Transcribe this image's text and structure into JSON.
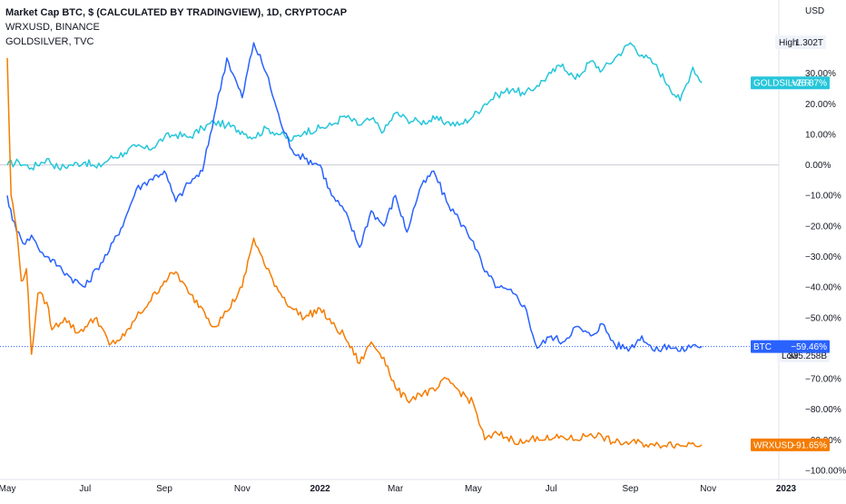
{
  "header": {
    "line1": "Market Cap BTC, $ (CALCULATED BY TRADINGVIEW), 1D, CRYPTOCAP",
    "line2": "WRXUSD, BINANCE",
    "line3": "GOLDSILVER, TVC"
  },
  "axis": {
    "currency": "USD",
    "high_label": "High",
    "high_value": "1.302T",
    "low_label": "Low",
    "low_value": "335.258B"
  },
  "chart_data": {
    "type": "line",
    "y_unit": "% change",
    "ylim": [
      -103,
      54
    ],
    "y_ticks": [
      {
        "value": 30,
        "label": "30.00%"
      },
      {
        "value": 20,
        "label": "20.00%"
      },
      {
        "value": 10,
        "label": "10.00%"
      },
      {
        "value": 0,
        "label": "0.00%"
      },
      {
        "value": -10,
        "label": "−10.00%"
      },
      {
        "value": -20,
        "label": "−20.00%"
      },
      {
        "value": -30,
        "label": "−30.00%"
      },
      {
        "value": -40,
        "label": "−40.00%"
      },
      {
        "value": -50,
        "label": "−50.00%"
      },
      {
        "value": -70,
        "label": "−70.00%"
      },
      {
        "value": -80,
        "label": "−80.00%"
      },
      {
        "value": -90,
        "label": "−90.00%"
      },
      {
        "value": -100,
        "label": "−100.00%"
      }
    ],
    "x_ticks": [
      {
        "label": "May",
        "bold": false
      },
      {
        "label": "Jul",
        "bold": false
      },
      {
        "label": "Sep",
        "bold": false
      },
      {
        "label": "Nov",
        "bold": false
      },
      {
        "label": "2022",
        "bold": true
      },
      {
        "label": "Mar",
        "bold": false
      },
      {
        "label": "May",
        "bold": false
      },
      {
        "label": "Jul",
        "bold": false
      },
      {
        "label": "Sep",
        "bold": false
      },
      {
        "label": "Nov",
        "bold": false
      },
      {
        "label": "2023",
        "bold": true
      }
    ],
    "x_tick_dates": [
      "2021-05-01",
      "2021-07-01",
      "2021-09-01",
      "2021-11-01",
      "2022-01-01",
      "2022-03-01",
      "2022-05-01",
      "2022-07-01",
      "2022-09-01",
      "2022-11-01",
      "2023-01-01"
    ],
    "baseline": 0,
    "series": [
      {
        "name": "GOLDSILVER",
        "color": "#26c6da",
        "last_value": 26.87,
        "last_label": "+26.87%",
        "points": [
          [
            "2021-05-01",
            0
          ],
          [
            "2021-05-10",
            1
          ],
          [
            "2021-05-20",
            -1
          ],
          [
            "2021-06-01",
            2
          ],
          [
            "2021-06-10",
            -1
          ],
          [
            "2021-06-20",
            0
          ],
          [
            "2021-07-01",
            1
          ],
          [
            "2021-07-10",
            -1
          ],
          [
            "2021-07-20",
            2
          ],
          [
            "2021-08-01",
            4
          ],
          [
            "2021-08-10",
            6
          ],
          [
            "2021-08-20",
            5
          ],
          [
            "2021-09-01",
            9
          ],
          [
            "2021-09-10",
            10
          ],
          [
            "2021-09-20",
            9
          ],
          [
            "2021-10-01",
            12
          ],
          [
            "2021-10-10",
            14
          ],
          [
            "2021-10-20",
            13
          ],
          [
            "2021-11-01",
            11
          ],
          [
            "2021-11-10",
            9
          ],
          [
            "2021-11-20",
            12
          ],
          [
            "2021-12-01",
            10
          ],
          [
            "2021-12-10",
            8
          ],
          [
            "2021-12-20",
            11
          ],
          [
            "2022-01-01",
            12
          ],
          [
            "2022-01-10",
            13
          ],
          [
            "2022-01-20",
            16
          ],
          [
            "2022-02-01",
            13
          ],
          [
            "2022-02-10",
            15
          ],
          [
            "2022-02-20",
            11
          ],
          [
            "2022-03-01",
            17
          ],
          [
            "2022-03-10",
            15
          ],
          [
            "2022-03-20",
            14
          ],
          [
            "2022-04-01",
            15
          ],
          [
            "2022-04-10",
            14
          ],
          [
            "2022-04-20",
            13
          ],
          [
            "2022-05-01",
            16
          ],
          [
            "2022-05-10",
            20
          ],
          [
            "2022-05-20",
            23
          ],
          [
            "2022-06-01",
            25
          ],
          [
            "2022-06-10",
            23
          ],
          [
            "2022-06-20",
            26
          ],
          [
            "2022-07-01",
            30
          ],
          [
            "2022-07-10",
            33
          ],
          [
            "2022-07-20",
            28
          ],
          [
            "2022-08-01",
            34
          ],
          [
            "2022-08-10",
            31
          ],
          [
            "2022-08-20",
            35
          ],
          [
            "2022-09-01",
            40
          ],
          [
            "2022-09-10",
            36
          ],
          [
            "2022-09-20",
            33
          ],
          [
            "2022-10-01",
            26
          ],
          [
            "2022-10-10",
            21
          ],
          [
            "2022-10-20",
            32
          ],
          [
            "2022-10-27",
            26.87
          ]
        ]
      },
      {
        "name": "BTC",
        "color": "#2962ff",
        "last_value": -59.46,
        "last_label": "−59.46%",
        "points": [
          [
            "2021-05-01",
            -10
          ],
          [
            "2021-05-05",
            -18
          ],
          [
            "2021-05-10",
            -22
          ],
          [
            "2021-05-15",
            -26
          ],
          [
            "2021-05-20",
            -23
          ],
          [
            "2021-05-25",
            -27
          ],
          [
            "2021-06-01",
            -30
          ],
          [
            "2021-06-10",
            -33
          ],
          [
            "2021-06-20",
            -37
          ],
          [
            "2021-07-01",
            -40
          ],
          [
            "2021-07-10",
            -34
          ],
          [
            "2021-07-20",
            -28
          ],
          [
            "2021-08-01",
            -18
          ],
          [
            "2021-08-10",
            -8
          ],
          [
            "2021-08-20",
            -5
          ],
          [
            "2021-09-01",
            -2
          ],
          [
            "2021-09-10",
            -12
          ],
          [
            "2021-09-20",
            -6
          ],
          [
            "2021-10-01",
            -2
          ],
          [
            "2021-10-10",
            16
          ],
          [
            "2021-10-20",
            35
          ],
          [
            "2021-11-01",
            22
          ],
          [
            "2021-11-10",
            40
          ],
          [
            "2021-11-20",
            30
          ],
          [
            "2021-12-01",
            14
          ],
          [
            "2021-12-10",
            5
          ],
          [
            "2021-12-20",
            2
          ],
          [
            "2022-01-01",
            0
          ],
          [
            "2022-01-10",
            -10
          ],
          [
            "2022-01-20",
            -15
          ],
          [
            "2022-02-01",
            -27
          ],
          [
            "2022-02-10",
            -15
          ],
          [
            "2022-02-20",
            -20
          ],
          [
            "2022-03-01",
            -10
          ],
          [
            "2022-03-10",
            -22
          ],
          [
            "2022-03-20",
            -8
          ],
          [
            "2022-03-31",
            -2
          ],
          [
            "2022-04-10",
            -12
          ],
          [
            "2022-04-20",
            -18
          ],
          [
            "2022-05-01",
            -25
          ],
          [
            "2022-05-10",
            -35
          ],
          [
            "2022-05-20",
            -40
          ],
          [
            "2022-06-01",
            -42
          ],
          [
            "2022-06-10",
            -46
          ],
          [
            "2022-06-20",
            -60
          ],
          [
            "2022-07-01",
            -56
          ],
          [
            "2022-07-10",
            -58
          ],
          [
            "2022-07-20",
            -53
          ],
          [
            "2022-08-01",
            -56
          ],
          [
            "2022-08-10",
            -52
          ],
          [
            "2022-08-20",
            -59
          ],
          [
            "2022-09-01",
            -60
          ],
          [
            "2022-09-10",
            -56
          ],
          [
            "2022-09-20",
            -61
          ],
          [
            "2022-10-01",
            -59
          ],
          [
            "2022-10-10",
            -61
          ],
          [
            "2022-10-20",
            -59
          ],
          [
            "2022-10-27",
            -59.46
          ]
        ]
      },
      {
        "name": "WRXUSD",
        "color": "#f57c00",
        "last_value": -91.65,
        "last_label": "−91.65%",
        "points": [
          [
            "2021-05-01",
            35
          ],
          [
            "2021-05-04",
            -10
          ],
          [
            "2021-05-08",
            -20
          ],
          [
            "2021-05-12",
            -38
          ],
          [
            "2021-05-16",
            -34
          ],
          [
            "2021-05-20",
            -62
          ],
          [
            "2021-05-25",
            -42
          ],
          [
            "2021-06-01",
            -45
          ],
          [
            "2021-06-05",
            -54
          ],
          [
            "2021-06-15",
            -50
          ],
          [
            "2021-06-25",
            -55
          ],
          [
            "2021-07-01",
            -53
          ],
          [
            "2021-07-10",
            -50
          ],
          [
            "2021-07-20",
            -59
          ],
          [
            "2021-08-01",
            -56
          ],
          [
            "2021-08-10",
            -50
          ],
          [
            "2021-08-20",
            -45
          ],
          [
            "2021-09-01",
            -38
          ],
          [
            "2021-09-10",
            -35
          ],
          [
            "2021-09-20",
            -42
          ],
          [
            "2021-10-01",
            -47
          ],
          [
            "2021-10-10",
            -53
          ],
          [
            "2021-10-20",
            -48
          ],
          [
            "2021-11-01",
            -40
          ],
          [
            "2021-11-10",
            -24
          ],
          [
            "2021-11-20",
            -34
          ],
          [
            "2021-12-01",
            -42
          ],
          [
            "2021-12-10",
            -47
          ],
          [
            "2021-12-20",
            -50
          ],
          [
            "2022-01-01",
            -47
          ],
          [
            "2022-01-10",
            -52
          ],
          [
            "2022-01-20",
            -56
          ],
          [
            "2022-02-01",
            -65
          ],
          [
            "2022-02-10",
            -58
          ],
          [
            "2022-02-20",
            -63
          ],
          [
            "2022-03-01",
            -73
          ],
          [
            "2022-03-10",
            -77
          ],
          [
            "2022-03-20",
            -75
          ],
          [
            "2022-04-01",
            -74
          ],
          [
            "2022-04-10",
            -70
          ],
          [
            "2022-04-20",
            -74
          ],
          [
            "2022-05-01",
            -78
          ],
          [
            "2022-05-10",
            -90
          ],
          [
            "2022-05-20",
            -88
          ],
          [
            "2022-06-01",
            -90
          ],
          [
            "2022-06-10",
            -91
          ],
          [
            "2022-06-20",
            -89
          ],
          [
            "2022-07-01",
            -90
          ],
          [
            "2022-07-10",
            -89
          ],
          [
            "2022-07-20",
            -90
          ],
          [
            "2022-08-01",
            -88
          ],
          [
            "2022-08-10",
            -89
          ],
          [
            "2022-08-20",
            -91
          ],
          [
            "2022-09-01",
            -91
          ],
          [
            "2022-09-10",
            -91
          ],
          [
            "2022-09-20",
            -92
          ],
          [
            "2022-10-01",
            -91
          ],
          [
            "2022-10-10",
            -92
          ],
          [
            "2022-10-20",
            -91
          ],
          [
            "2022-10-27",
            -91.65
          ]
        ]
      }
    ]
  }
}
